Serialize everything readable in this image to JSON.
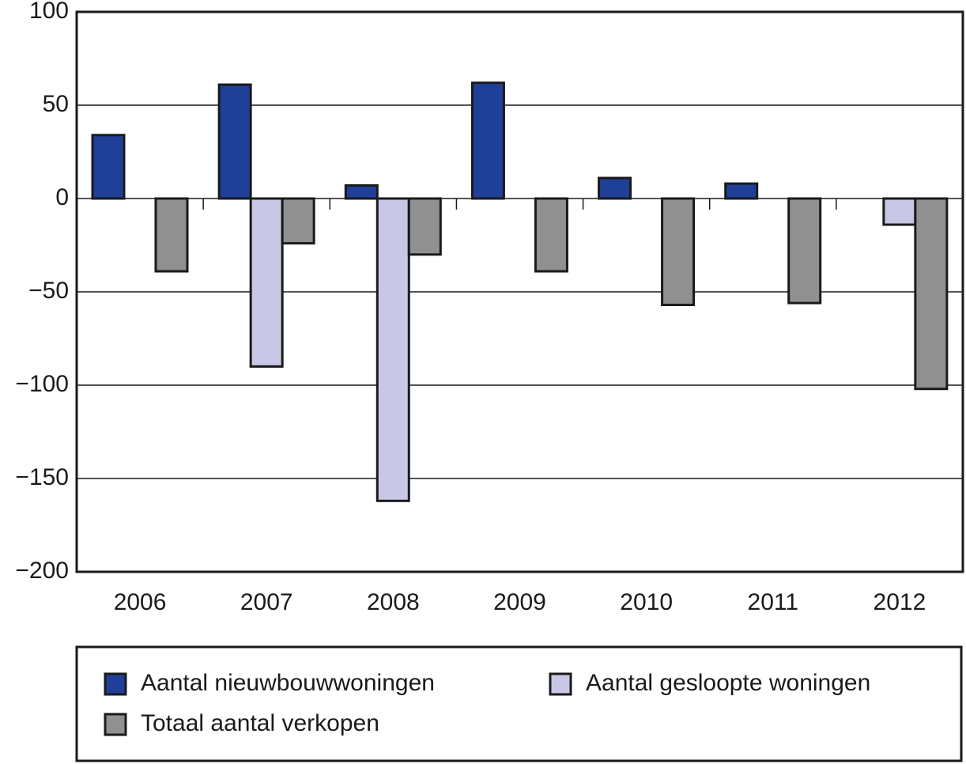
{
  "chart_data": {
    "type": "bar",
    "categories": [
      "2006",
      "2007",
      "2008",
      "2009",
      "2010",
      "2011",
      "2012"
    ],
    "series": [
      {
        "name": "Aantal nieuwbouwwoningen",
        "color": "#1f3f99",
        "values": [
          34,
          61,
          7,
          62,
          11,
          8,
          0
        ]
      },
      {
        "name": "Aantal gesloopte woningen",
        "color": "#c8c8e6",
        "values": [
          0,
          -90,
          -162,
          0,
          0,
          0,
          -14
        ]
      },
      {
        "name": "Totaal aantal verkopen",
        "color": "#909090",
        "values": [
          -39,
          -24,
          -30,
          -39,
          -57,
          -56,
          -102
        ]
      }
    ],
    "ylim": [
      -200,
      100
    ],
    "yticks": [
      {
        "value": -200,
        "label": "−200"
      },
      {
        "value": -150,
        "label": "−150"
      },
      {
        "value": -100,
        "label": "−100"
      },
      {
        "value": -50,
        "label": "−50"
      },
      0,
      50,
      100
    ],
    "grid": true
  }
}
